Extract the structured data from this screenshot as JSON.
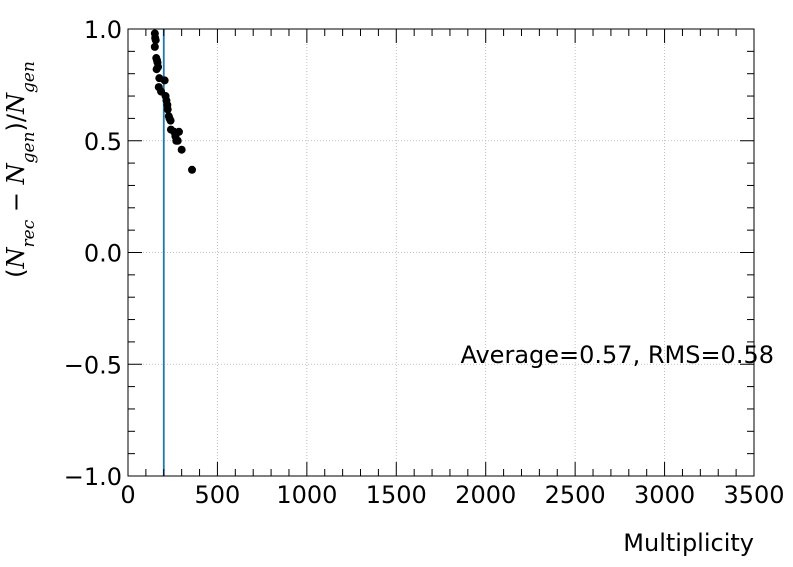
{
  "chart_data": {
    "type": "scatter",
    "title": "",
    "xlabel": "Multiplicity",
    "ylabel": {
      "lparen": "(",
      "n1": "N",
      "sub1": "rec",
      "minus": " − ",
      "n2": "N",
      "sub2": "gen",
      "rparen_slash": ")/",
      "n3": "N",
      "sub3": "gen"
    },
    "xlim": [
      0,
      3500
    ],
    "ylim": [
      -1.0,
      1.0
    ],
    "xticks": [
      0,
      500,
      1000,
      1500,
      2000,
      2500,
      3000,
      3500
    ],
    "xtick_labels": [
      "0",
      "500",
      "1000",
      "1500",
      "2000",
      "2500",
      "3000",
      "3500"
    ],
    "yticks": [
      -1.0,
      -0.5,
      0.0,
      0.5,
      1.0
    ],
    "ytick_labels": [
      "−1.0",
      "−0.5",
      "0.0",
      "0.5",
      "1.0"
    ],
    "grid": true,
    "vline_x": 200,
    "vline_color": "#1f77b4",
    "marker_color": "#000000",
    "annotation": "Average=0.57, RMS=0.58",
    "points": [
      {
        "x": 150,
        "y": 0.98
      },
      {
        "x": 152,
        "y": 0.96
      },
      {
        "x": 155,
        "y": 0.95
      },
      {
        "x": 150,
        "y": 0.92
      },
      {
        "x": 158,
        "y": 0.87
      },
      {
        "x": 162,
        "y": 0.86
      },
      {
        "x": 165,
        "y": 0.85
      },
      {
        "x": 168,
        "y": 0.83
      },
      {
        "x": 160,
        "y": 0.82
      },
      {
        "x": 175,
        "y": 0.78
      },
      {
        "x": 205,
        "y": 0.77
      },
      {
        "x": 172,
        "y": 0.74
      },
      {
        "x": 185,
        "y": 0.72
      },
      {
        "x": 210,
        "y": 0.7
      },
      {
        "x": 215,
        "y": 0.68
      },
      {
        "x": 220,
        "y": 0.66
      },
      {
        "x": 222,
        "y": 0.64
      },
      {
        "x": 228,
        "y": 0.61
      },
      {
        "x": 232,
        "y": 0.6
      },
      {
        "x": 238,
        "y": 0.59
      },
      {
        "x": 240,
        "y": 0.55
      },
      {
        "x": 258,
        "y": 0.54
      },
      {
        "x": 285,
        "y": 0.54
      },
      {
        "x": 265,
        "y": 0.52
      },
      {
        "x": 270,
        "y": 0.5
      },
      {
        "x": 278,
        "y": 0.5
      },
      {
        "x": 300,
        "y": 0.46
      },
      {
        "x": 358,
        "y": 0.37
      }
    ]
  }
}
